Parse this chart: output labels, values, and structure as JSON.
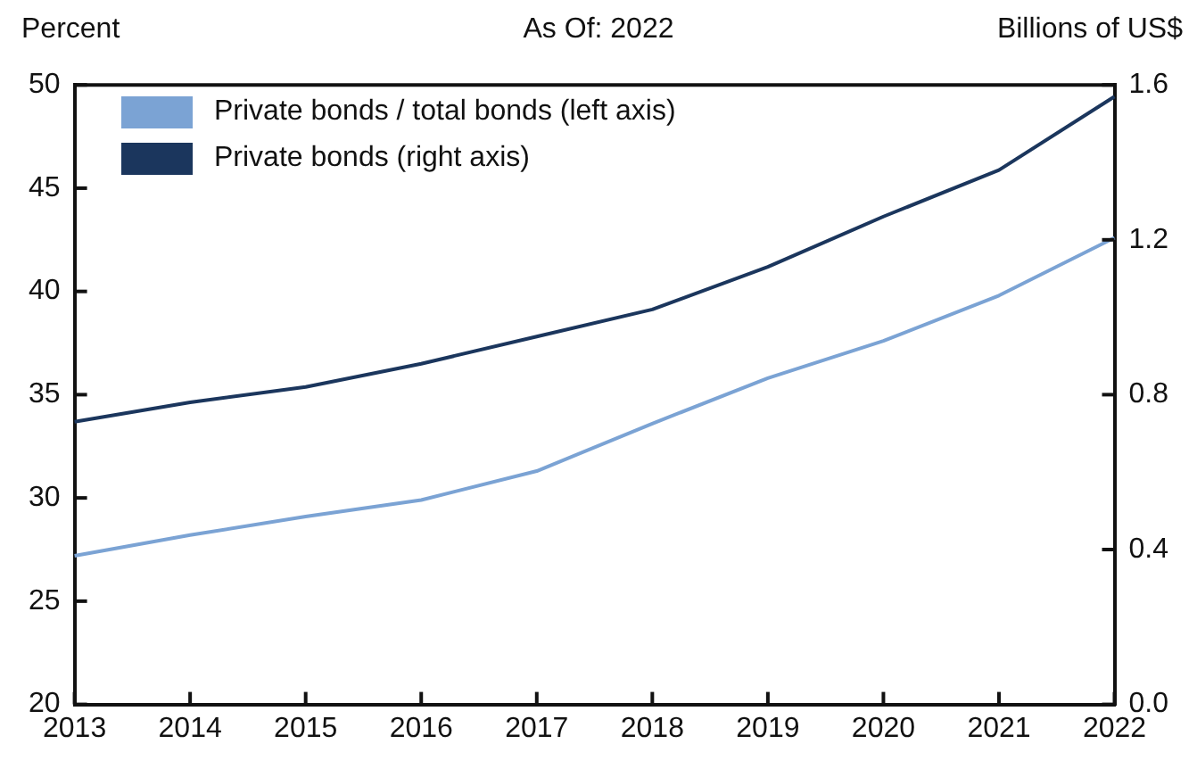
{
  "chart_data": {
    "type": "line",
    "title": "As Of: 2022",
    "ylabel": "Percent",
    "y2label": "Billions of US$",
    "categories": [
      "2013",
      "2014",
      "2015",
      "2016",
      "2017",
      "2018",
      "2019",
      "2020",
      "2021",
      "2022"
    ],
    "series": [
      {
        "name": "Private bonds / total bonds (left axis)",
        "color": "#7ba3d4",
        "values": [
          27.2,
          28.2,
          29.1,
          29.9,
          31.3,
          33.6,
          35.8,
          37.6,
          39.8,
          42.6
        ]
      },
      {
        "name": "Private bonds (right axis)",
        "color": "#1b365d",
        "axis": "y2",
        "values": [
          0.73,
          0.78,
          0.82,
          0.88,
          0.95,
          1.02,
          1.13,
          1.26,
          1.38,
          1.57
        ]
      }
    ],
    "ylim": [
      20,
      50
    ],
    "yticks": [
      20,
      25,
      30,
      35,
      40,
      45,
      50
    ],
    "y2lim": [
      0,
      1.6
    ],
    "y2ticks": [
      {
        "value": 0,
        "label": "0.0"
      },
      0.4,
      0.8,
      1.2,
      1.6
    ],
    "legend": "top left",
    "grid": false,
    "marker": "none",
    "line_style": "solid"
  }
}
